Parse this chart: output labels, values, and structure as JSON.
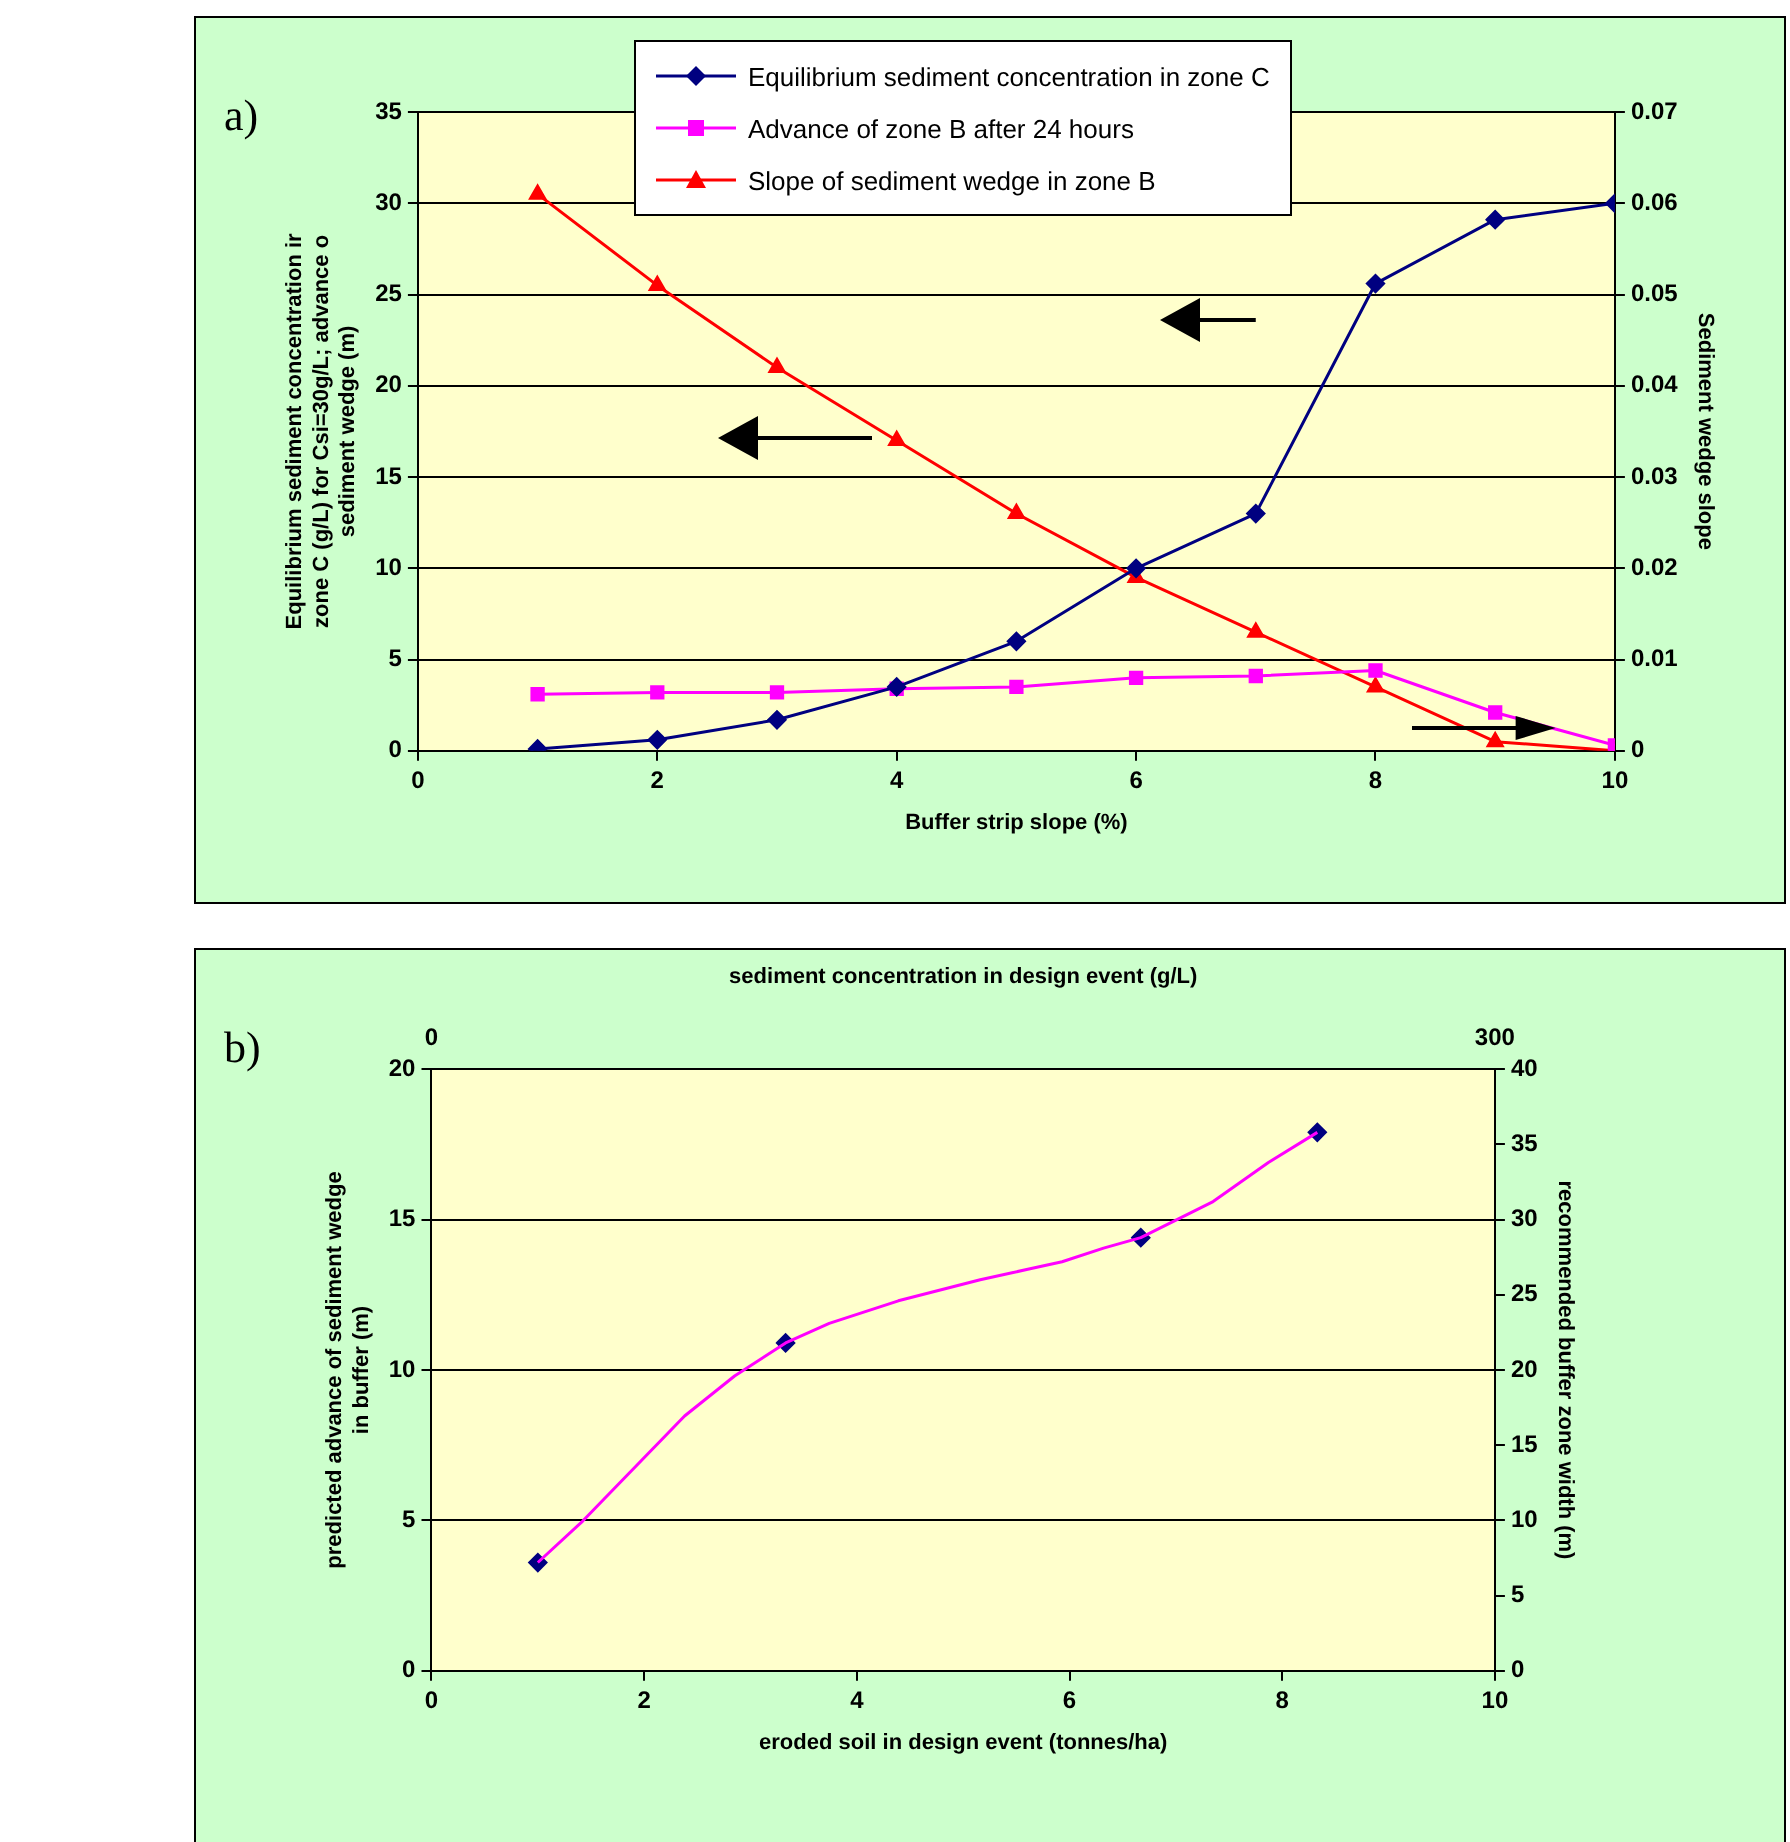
{
  "chart_data": [
    {
      "type": "line",
      "title": "a)",
      "xlabel": "Buffer strip slope (%)",
      "ylabel": "Equilibrium sediment concentration ir\nzone C (g/L) for Csi=30g/L; advance o\nsediment wedge (m)",
      "y2label": "Sediment wedge slope",
      "x": [
        1,
        2,
        3,
        4,
        5,
        6,
        7,
        8,
        9,
        10
      ],
      "series": [
        {
          "name": "Equilibrium sediment concentration in zone C",
          "color": "#000080",
          "marker": "diamond",
          "values": [
            0.1,
            0.6,
            1.7,
            3.5,
            6,
            10,
            13,
            25.6,
            29.1,
            30
          ]
        },
        {
          "name": "Advance of zone B after 24 hours",
          "color": "#ff00ff",
          "marker": "square",
          "values": [
            3.1,
            3.2,
            3.2,
            3.4,
            3.5,
            4,
            4.1,
            4.4,
            2.1,
            0.3
          ]
        },
        {
          "name": "Slope of sediment wedge in zone B",
          "color": "#ff0000",
          "marker": "triangle",
          "axis": "y2",
          "values": [
            0.061,
            0.051,
            0.042,
            0.034,
            0.026,
            0.019,
            0.013,
            0.007,
            0.001,
            0
          ]
        }
      ],
      "xlim": [
        0,
        10
      ],
      "xticks": [
        0,
        2,
        4,
        6,
        8,
        10
      ],
      "ylim": [
        0,
        35
      ],
      "yticks": [
        0,
        5,
        10,
        15,
        20,
        25,
        30,
        35
      ],
      "y2lim": [
        0,
        0.07
      ],
      "y2ticks": [
        0,
        0.01,
        0.02,
        0.03,
        0.04,
        0.05,
        0.06,
        0.07
      ],
      "grid": "y",
      "legend": "top"
    },
    {
      "type": "line",
      "title": "b)",
      "xlabel": "eroded soil in design event (tonnes/ha)",
      "x2label": "sediment concentration in design event (g/L)",
      "ylabel": "predicted advance of sediment wedge\nin buffer (m)",
      "y2label": "recommended buffer zone width (m)",
      "series": [
        {
          "type": "line",
          "color": "#ff00ff",
          "marker": "none",
          "x": [
            1,
            1.42,
            2.38,
            2.85,
            3.33,
            3.74,
            4.39,
            5.16,
            5.93,
            6.32,
            6.67,
            7.35,
            7.87,
            8.33
          ],
          "values": [
            3.6,
            4.97,
            8.47,
            9.8,
            10.9,
            11.55,
            12.3,
            13,
            13.6,
            14.05,
            14.4,
            15.6,
            16.9,
            17.9
          ]
        },
        {
          "type": "scatter",
          "color": "#000080",
          "marker": "diamond",
          "x": [
            1,
            3.33,
            6.67,
            8.33
          ],
          "values": [
            3.6,
            10.9,
            14.4,
            17.9
          ]
        }
      ],
      "xlim": [
        0,
        10
      ],
      "xticks": [
        0,
        2,
        4,
        6,
        8,
        10
      ],
      "ylim": [
        0,
        20
      ],
      "yticks": [
        0,
        5,
        10,
        15,
        20
      ],
      "y2lim": [
        0,
        40
      ],
      "y2ticks": [
        0,
        5,
        10,
        15,
        20,
        25,
        30,
        35,
        40
      ],
      "x2lim": [
        0,
        300
      ],
      "x2ticks": [
        0,
        300
      ],
      "grid": "y"
    }
  ]
}
